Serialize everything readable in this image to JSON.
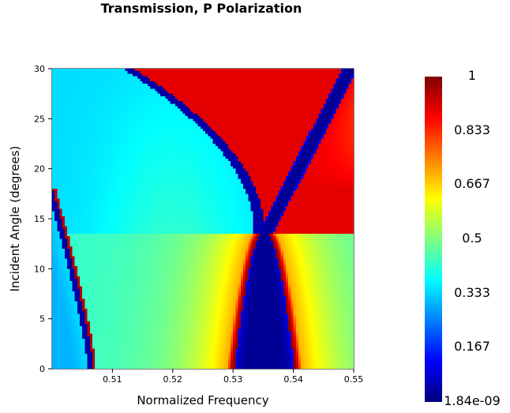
{
  "chart_data": {
    "type": "heatmap",
    "title": "Transmission, P Polarization",
    "xlabel": "Normalized Frequency",
    "ylabel": "Incident Angle (degrees)",
    "xlim": [
      0.5,
      0.55
    ],
    "ylim": [
      0,
      30
    ],
    "x_ticks": [
      0.51,
      0.52,
      0.53,
      0.54,
      0.55
    ],
    "x_tick_labels": [
      "0.51",
      "0.52",
      "0.53",
      "0.54",
      "0.55"
    ],
    "y_ticks": [
      0,
      5,
      10,
      15,
      20,
      25,
      30
    ],
    "y_tick_labels": [
      "0",
      "5",
      "10",
      "15",
      "20",
      "25",
      "30"
    ],
    "colorbar": {
      "colormap": "jet",
      "range": [
        1.84e-09,
        1
      ],
      "ticks": [
        1,
        0.833,
        0.667,
        0.5,
        0.333,
        0.167,
        1.84e-09
      ],
      "tick_labels": [
        "1",
        "0.833",
        "0.667",
        "0.5",
        "0.333",
        "0.167",
        "1.84e-09"
      ]
    },
    "features": {
      "gap_center_frequency": 0.5352,
      "gap_closing_angle": 13.5,
      "low_freq_resonance_at_zero_angle": 0.5065,
      "low_freq_resonance_reaches_left_edge_angle": 17.5
    },
    "grid": false
  }
}
